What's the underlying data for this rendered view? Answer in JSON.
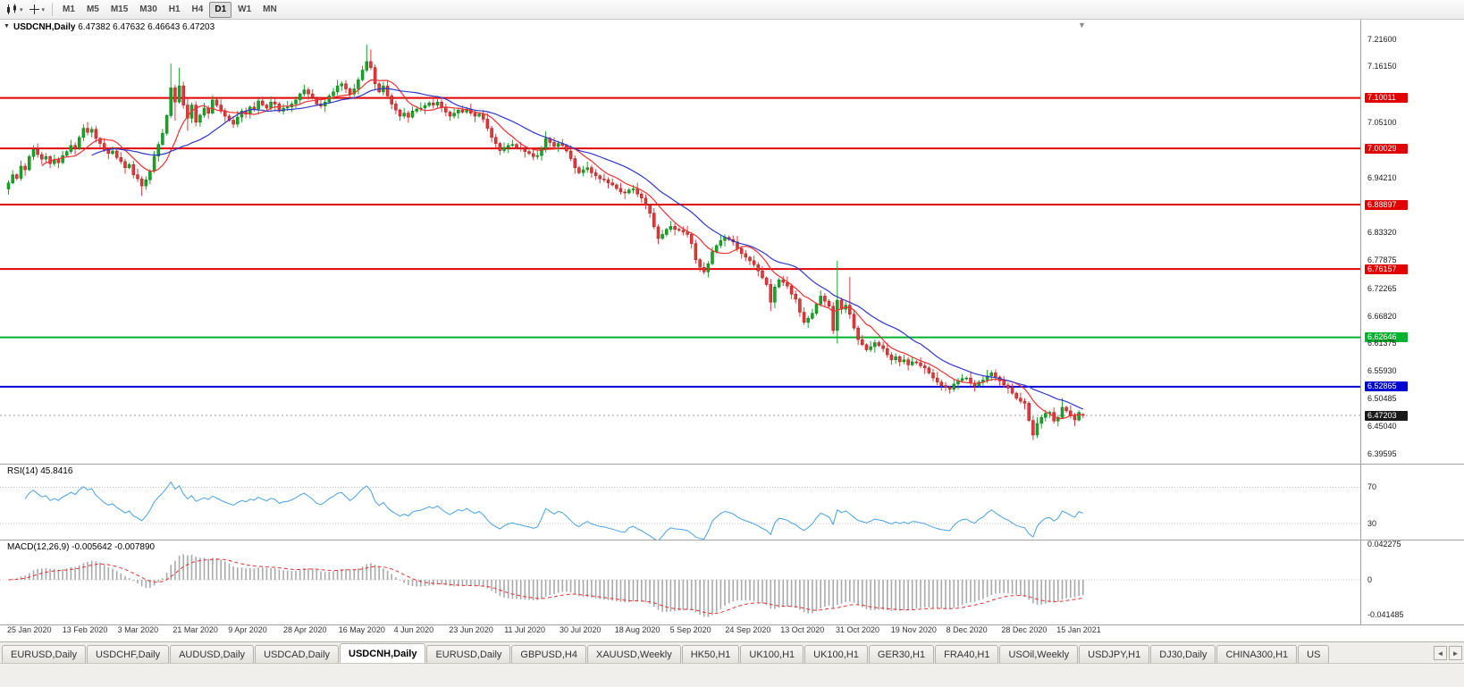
{
  "toolbar": {
    "timeframes": [
      "M1",
      "M5",
      "M15",
      "M30",
      "H1",
      "H4",
      "D1",
      "W1",
      "MN"
    ],
    "active_timeframe": "D1"
  },
  "icons": {
    "caret": "▾",
    "collapse_arrow": "▼",
    "shift_marker": "▼",
    "scroll_left": "◄",
    "scroll_right": "►"
  },
  "chart": {
    "symbol_period": "USDCNH,Daily",
    "ohlc_text": "6.47382 6.47632 6.46643 6.47203"
  },
  "colors": {
    "candle_up": "#18a427",
    "candle_up_edge": "#0d7a19",
    "candle_down": "#e23a3a",
    "candle_down_edge": "#a31414",
    "rsi_line": "#4aa0e0",
    "macd_hist": "#a9a9a9",
    "macd_signal": "#e03232",
    "level_grid": "#bdbdbd",
    "last_price_line": "#999999",
    "label_bg": {
      "red": "#e00000",
      "green": "#00b22d",
      "blue": "#0000d8",
      "last": "#1a1a1a"
    }
  },
  "chart_data": {
    "type": "candlestick",
    "title": "USDCNH,Daily",
    "current_ohlc": {
      "open": 6.47382,
      "high": 6.47632,
      "low": 6.46643,
      "close": 6.47203
    },
    "last_price": 6.47203,
    "ylim": [
      6.39595,
      7.216
    ],
    "xlabels": [
      "25 Jan 2020",
      "13 Feb 2020",
      "3 Mar 2020",
      "21 Mar 2020",
      "9 Apr 2020",
      "28 Apr 2020",
      "16 May 2020",
      "4 Jun 2020",
      "23 Jun 2020",
      "11 Jul 2020",
      "30 Jul 2020",
      "18 Aug 2020",
      "5 Sep 2020",
      "24 Sep 2020",
      "13 Oct 2020",
      "31 Oct 2020",
      "19 Nov 2020",
      "8 Dec 2020",
      "28 Dec 2020",
      "15 Jan 2021"
    ],
    "ylabels": [
      {
        "text": "7.21600",
        "price": 7.216,
        "style": "plain"
      },
      {
        "text": "7.16150",
        "price": 7.1615,
        "style": "plain"
      },
      {
        "text": "7.10011",
        "price": 7.10011,
        "style": "red"
      },
      {
        "text": "7.05100",
        "price": 7.051,
        "style": "plain"
      },
      {
        "text": "7.00029",
        "price": 7.00029,
        "style": "red"
      },
      {
        "text": "6.94210",
        "price": 6.9421,
        "style": "plain"
      },
      {
        "text": "6.88897",
        "price": 6.88897,
        "style": "red"
      },
      {
        "text": "6.83320",
        "price": 6.8332,
        "style": "plain"
      },
      {
        "text": "6.77875",
        "price": 6.77875,
        "style": "plain"
      },
      {
        "text": "6.76157",
        "price": 6.76157,
        "style": "red"
      },
      {
        "text": "6.72265",
        "price": 6.72265,
        "style": "plain"
      },
      {
        "text": "6.66820",
        "price": 6.6682,
        "style": "plain"
      },
      {
        "text": "6.62646",
        "price": 6.62646,
        "style": "green"
      },
      {
        "text": "6.61375",
        "price": 6.61375,
        "style": "plain"
      },
      {
        "text": "6.55930",
        "price": 6.5593,
        "style": "plain"
      },
      {
        "text": "6.52865",
        "price": 6.52865,
        "style": "blue"
      },
      {
        "text": "6.50485",
        "price": 6.50485,
        "style": "plain"
      },
      {
        "text": "6.47203",
        "price": 6.47203,
        "style": "last"
      },
      {
        "text": "6.45040",
        "price": 6.4504,
        "style": "plain"
      },
      {
        "text": "6.39595",
        "price": 6.39595,
        "style": "plain"
      }
    ],
    "levels": [
      {
        "text": "7.10011",
        "price": 7.10011,
        "color": "#e00000",
        "kind": "resistance"
      },
      {
        "text": "7.00029",
        "price": 7.00029,
        "color": "#e00000",
        "kind": "resistance"
      },
      {
        "text": "6.88897",
        "price": 6.88897,
        "color": "#e00000",
        "kind": "resistance"
      },
      {
        "text": "6.76157",
        "price": 6.76157,
        "color": "#e00000",
        "kind": "resistance"
      },
      {
        "text": "6.62646",
        "price": 6.62646,
        "color": "#00b22d",
        "kind": "support"
      },
      {
        "text": "6.52865",
        "price": 6.52865,
        "color": "#0000d8",
        "kind": "support"
      }
    ],
    "moving_averages": [
      {
        "label": "fast-ma",
        "period": 9,
        "color": "#f03030"
      },
      {
        "label": "slow-ma",
        "period": 21,
        "color": "#3038c8"
      }
    ],
    "candles": {
      "first_open": 6.92,
      "wick_cycle": [
        0.005,
        0.009,
        0.003,
        0.011,
        0.006,
        0.004,
        0.008,
        0.012,
        0.005,
        0.007,
        0.003,
        0.01
      ],
      "closes": [
        6.932,
        6.948,
        6.941,
        6.965,
        6.958,
        6.984,
        6.998,
        6.988,
        6.979,
        6.984,
        6.97,
        6.978,
        6.972,
        6.986,
        6.994,
        7.006,
        7.0,
        7.022,
        7.04,
        7.032,
        7.038,
        7.02,
        7.01,
        6.998,
        6.99,
        6.995,
        6.982,
        6.974,
        6.962,
        6.968,
        6.948,
        6.94,
        6.926,
        6.938,
        6.956,
        6.985,
        7.008,
        7.03,
        7.065,
        7.12,
        7.092,
        7.124,
        7.086,
        7.06,
        7.086,
        7.052,
        7.066,
        7.08,
        7.07,
        7.096,
        7.086,
        7.074,
        7.064,
        7.056,
        7.048,
        7.062,
        7.074,
        7.068,
        7.082,
        7.078,
        7.094,
        7.086,
        7.08,
        7.092,
        7.088,
        7.074,
        7.08,
        7.082,
        7.088,
        7.096,
        7.108,
        7.116,
        7.108,
        7.1,
        7.088,
        7.084,
        7.092,
        7.104,
        7.112,
        7.124,
        7.128,
        7.118,
        7.108,
        7.118,
        7.136,
        7.155,
        7.172,
        7.16,
        7.128,
        7.112,
        7.124,
        7.104,
        7.088,
        7.076,
        7.064,
        7.07,
        7.062,
        7.074,
        7.078,
        7.08,
        7.085,
        7.09,
        7.086,
        7.092,
        7.082,
        7.072,
        7.064,
        7.07,
        7.076,
        7.072,
        7.078,
        7.07,
        7.064,
        7.068,
        7.058,
        7.04,
        7.022,
        7.01,
        6.996,
        7.002,
        7.006,
        7.008,
        7.002,
        6.999,
        6.994,
        6.99,
        6.984,
        6.986,
        7.0,
        7.02,
        7.012,
        7.004,
        7.01,
        7.006,
        6.995,
        6.98,
        6.962,
        6.952,
        6.958,
        6.962,
        6.952,
        6.946,
        6.94,
        6.938,
        6.932,
        6.928,
        6.921,
        6.914,
        6.912,
        6.918,
        6.92,
        6.91,
        6.902,
        6.888,
        6.872,
        6.845,
        6.822,
        6.83,
        6.84,
        6.846,
        6.84,
        6.838,
        6.835,
        6.83,
        6.812,
        6.78,
        6.765,
        6.756,
        6.772,
        6.796,
        6.808,
        6.818,
        6.824,
        6.82,
        6.815,
        6.802,
        6.792,
        6.785,
        6.778,
        6.77,
        6.758,
        6.744,
        6.731,
        6.696,
        6.726,
        6.74,
        6.735,
        6.728,
        6.712,
        6.702,
        6.676,
        6.656,
        6.664,
        6.674,
        6.692,
        6.708,
        6.698,
        6.688,
        6.64,
        6.7,
        6.682,
        6.69,
        6.672,
        6.645,
        6.622,
        6.612,
        6.602,
        6.608,
        6.616,
        6.61,
        6.604,
        6.592,
        6.582,
        6.588,
        6.578,
        6.582,
        6.572,
        6.578,
        6.576,
        6.57,
        6.566,
        6.556,
        6.546,
        6.538,
        6.531,
        6.528,
        6.524,
        6.534,
        6.541,
        6.545,
        6.546,
        6.536,
        6.531,
        6.538,
        6.542,
        6.55,
        6.556,
        6.548,
        6.54,
        6.532,
        6.526,
        6.516,
        6.506,
        6.5,
        6.496,
        6.462,
        6.433,
        6.456,
        6.468,
        6.476,
        6.478,
        6.461,
        6.468,
        6.488,
        6.481,
        6.471,
        6.463,
        6.478,
        6.47203
      ],
      "overrides": {
        "32": {
          "l": 6.906
        },
        "39": {
          "h": 7.168
        },
        "40": {
          "l": 7.055
        },
        "41": {
          "h": 7.16
        },
        "43": {
          "l": 7.035
        },
        "86": {
          "h": 7.205
        },
        "87": {
          "h": 7.196
        },
        "129": {
          "h": 7.034
        },
        "183": {
          "l": 6.678
        },
        "199": {
          "h": 6.778,
          "l": 6.614
        },
        "202": {
          "h": 6.746
        },
        "246": {
          "l": 6.423
        },
        "253": {
          "h": 6.506
        },
        "258": {
          "o": 6.47382,
          "h": 6.47632,
          "l": 6.46643
        }
      }
    },
    "rsi": {
      "label": "RSI(14) 45.8416",
      "value": 45.8416,
      "period": 14,
      "levels": [
        {
          "text": "70",
          "value": 70
        },
        {
          "text": "30",
          "value": 30
        }
      ]
    },
    "macd": {
      "label": "MACD(12,26,9) -0.005642 -0.007890",
      "value": -0.005642,
      "signal": -0.00789,
      "axis": [
        {
          "text": "0.042275",
          "value": 0.042275
        },
        {
          "text": "0",
          "value": 0
        },
        {
          "text": "-0.041485",
          "value": -0.041485
        }
      ]
    }
  },
  "tabs": {
    "active_index": 4,
    "items": [
      "EURUSD,Daily",
      "USDCHF,Daily",
      "AUDUSD,Daily",
      "USDCAD,Daily",
      "USDCNH,Daily",
      "EURUSD,Daily",
      "GBPUSD,H4",
      "XAUUSD,Weekly",
      "HK50,H1",
      "UK100,H1",
      "UK100,H1",
      "GER30,H1",
      "FRA40,H1",
      "USOil,Weekly",
      "USDJPY,H1",
      "DJ30,Daily",
      "CHINA300,H1",
      "US"
    ]
  }
}
